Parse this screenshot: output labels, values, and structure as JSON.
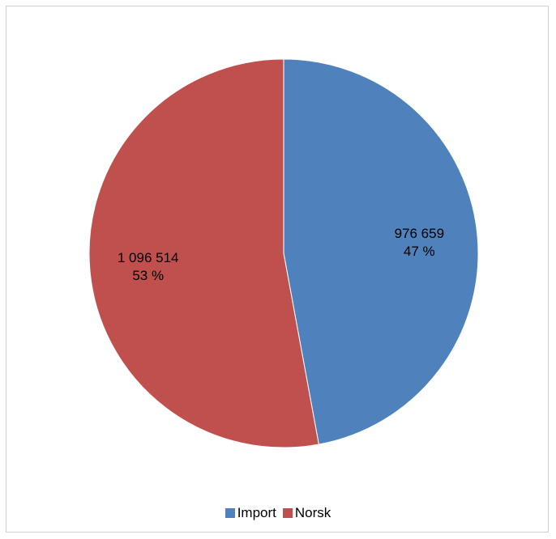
{
  "chart_data": {
    "type": "pie",
    "categories": [
      "Import",
      "Norsk"
    ],
    "values": [
      976659,
      1096514
    ],
    "value_labels": [
      "976 659",
      "1 096 514"
    ],
    "percent_labels": [
      "47 %",
      "53 %"
    ],
    "colors": [
      "#4f81bd",
      "#c0504d"
    ],
    "start_angle_deg": 0,
    "direction": "clockwise",
    "legend_position": "bottom",
    "title": ""
  },
  "legend": {
    "items": [
      {
        "label": "Import",
        "color": "#4f81bd"
      },
      {
        "label": "Norsk",
        "color": "#c0504d"
      }
    ]
  }
}
